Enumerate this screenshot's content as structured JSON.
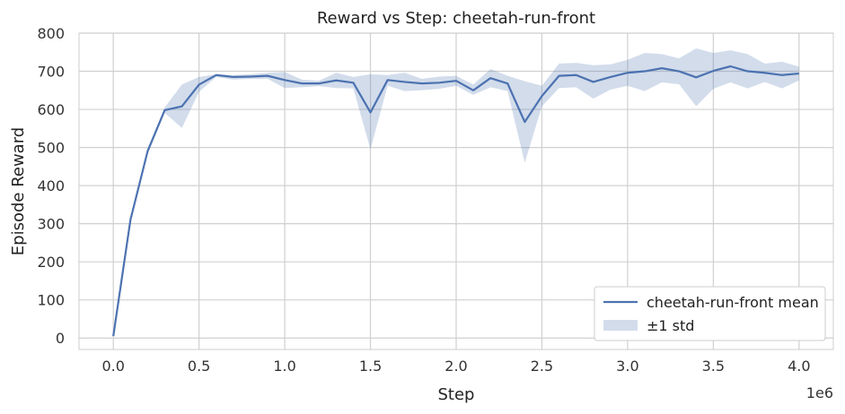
{
  "chart_data": {
    "type": "line",
    "title": "Reward vs Step: cheetah-run-front",
    "xlabel": "Step",
    "ylabel": "Episode Reward",
    "x_offset_label": "1e6",
    "xlim": [
      -0.2,
      4.2
    ],
    "ylim": [
      -30,
      800
    ],
    "xticks": [
      0.0,
      0.5,
      1.0,
      1.5,
      2.0,
      2.5,
      3.0,
      3.5,
      4.0
    ],
    "xtick_labels": [
      "0.0",
      "0.5",
      "1.0",
      "1.5",
      "2.0",
      "2.5",
      "3.0",
      "3.5",
      "4.0"
    ],
    "yticks": [
      0,
      100,
      200,
      300,
      400,
      500,
      600,
      700,
      800
    ],
    "ytick_labels": [
      "0",
      "100",
      "200",
      "300",
      "400",
      "500",
      "600",
      "700",
      "800"
    ],
    "grid": true,
    "legend_position": "bottom-right",
    "colors": {
      "line": "#4c72b0",
      "band": "#4c72b0",
      "grid": "#d0d0d0"
    },
    "x": [
      0.0,
      0.1,
      0.2,
      0.3,
      0.4,
      0.5,
      0.6,
      0.7,
      0.8,
      0.9,
      1.0,
      1.1,
      1.2,
      1.3,
      1.4,
      1.5,
      1.6,
      1.7,
      1.8,
      1.9,
      2.0,
      2.1,
      2.2,
      2.3,
      2.4,
      2.5,
      2.6,
      2.7,
      2.8,
      2.9,
      3.0,
      3.1,
      3.2,
      3.3,
      3.4,
      3.5,
      3.6,
      3.7,
      3.8,
      3.9,
      4.0
    ],
    "series": [
      {
        "name": "cheetah-run-front mean",
        "values": [
          5,
          310,
          490,
          598,
          608,
          665,
          690,
          685,
          686,
          688,
          677,
          668,
          668,
          676,
          670,
          592,
          677,
          672,
          668,
          670,
          675,
          650,
          682,
          668,
          567,
          635,
          688,
          690,
          672,
          685,
          696,
          700,
          708,
          700,
          684,
          701,
          713,
          700,
          696,
          690,
          694
        ]
      }
    ],
    "band": {
      "name": "±1 std",
      "upper": [
        8,
        315,
        498,
        605,
        665,
        685,
        692,
        690,
        692,
        696,
        698,
        678,
        675,
        696,
        685,
        692,
        690,
        696,
        680,
        686,
        688,
        665,
        706,
        688,
        674,
        662,
        720,
        722,
        716,
        718,
        730,
        748,
        745,
        734,
        760,
        748,
        755,
        745,
        720,
        725,
        712
      ],
      "lower": [
        2,
        305,
        482,
        591,
        551,
        646,
        685,
        678,
        680,
        680,
        656,
        658,
        661,
        656,
        655,
        495,
        662,
        648,
        650,
        654,
        662,
        638,
        658,
        648,
        460,
        608,
        656,
        658,
        628,
        652,
        662,
        648,
        671,
        666,
        608,
        654,
        671,
        655,
        672,
        655,
        676
      ]
    }
  }
}
